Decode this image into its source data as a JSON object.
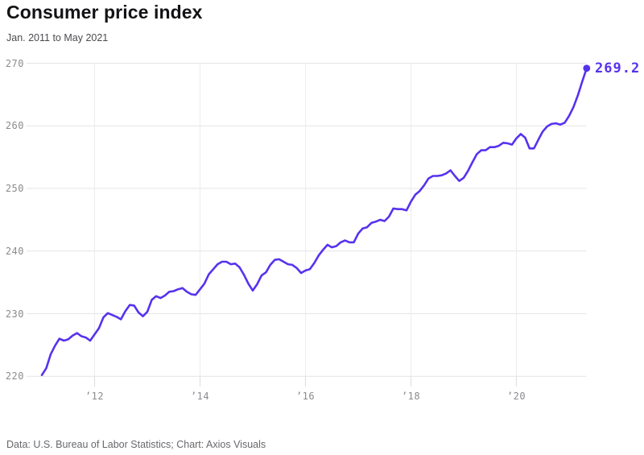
{
  "header": {
    "title": "Consumer price index",
    "subtitle": "Jan. 2011 to May 2021"
  },
  "footer": {
    "source_line": "Data: U.S. Bureau of Labor Statistics; Chart: Axios Visuals"
  },
  "colors": {
    "line": "#5732ee",
    "end_dot": "#5732ee",
    "end_label": "#5732ee",
    "grid_horizontal": "#e4e4e6",
    "grid_vertical": "#ececee",
    "axis_tick_mark": "#e0e0e3",
    "tick_text": "#8b8b90",
    "title_text": "#131316",
    "subtitle_text": "#4b4b50",
    "footer_text": "#68686d"
  },
  "chart_data": {
    "type": "line",
    "title": "Consumer price index",
    "subtitle": "Jan. 2011 to May 2021",
    "x_range": "Jan. 2011 to May 2021",
    "ylim": [
      220,
      270
    ],
    "grid": "on",
    "legend": "none",
    "y_ticks": [
      220,
      230,
      240,
      250,
      260,
      270
    ],
    "x_ticks": [
      {
        "label": "’12",
        "year": 2012
      },
      {
        "label": "’14",
        "year": 2014
      },
      {
        "label": "’16",
        "year": 2016
      },
      {
        "label": "’18",
        "year": 2018
      },
      {
        "label": "’20",
        "year": 2020
      }
    ],
    "end_label": "269.2",
    "last_value": 269.2,
    "series": [
      {
        "name": "Consumer price index (monthly, Jan 2011 - May 2021)",
        "start_year": 2011,
        "start_month": 1,
        "values": [
          220.2,
          221.3,
          223.5,
          224.9,
          226.0,
          225.7,
          225.9,
          226.5,
          226.9,
          226.4,
          226.2,
          225.7,
          226.7,
          227.7,
          229.4,
          230.1,
          229.8,
          229.5,
          229.1,
          230.4,
          231.4,
          231.3,
          230.2,
          229.6,
          230.3,
          232.2,
          232.8,
          232.5,
          232.9,
          233.5,
          233.6,
          233.9,
          234.1,
          233.5,
          233.1,
          233.0,
          233.9,
          234.8,
          236.3,
          237.1,
          237.9,
          238.3,
          238.3,
          237.9,
          238.0,
          237.4,
          236.2,
          234.8,
          233.7,
          234.7,
          236.1,
          236.6,
          237.8,
          238.6,
          238.7,
          238.3,
          237.9,
          237.8,
          237.3,
          236.5,
          236.9,
          237.1,
          238.1,
          239.3,
          240.2,
          241.0,
          240.6,
          240.8,
          241.4,
          241.7,
          241.4,
          241.4,
          242.8,
          243.6,
          243.8,
          244.5,
          244.7,
          245.0,
          244.8,
          245.5,
          246.8,
          246.7,
          246.7,
          246.5,
          247.9,
          249.0,
          249.6,
          250.5,
          251.6,
          252.0,
          252.0,
          252.1,
          252.4,
          252.9,
          252.0,
          251.2,
          251.7,
          252.8,
          254.2,
          255.5,
          256.1,
          256.1,
          256.6,
          256.6,
          256.8,
          257.3,
          257.2,
          257.0,
          258.0,
          258.7,
          258.1,
          256.4,
          256.4,
          257.8,
          259.1,
          259.9,
          260.3,
          260.4,
          260.2,
          260.5,
          261.6,
          263.0,
          264.9,
          267.1,
          269.2
        ]
      }
    ]
  }
}
